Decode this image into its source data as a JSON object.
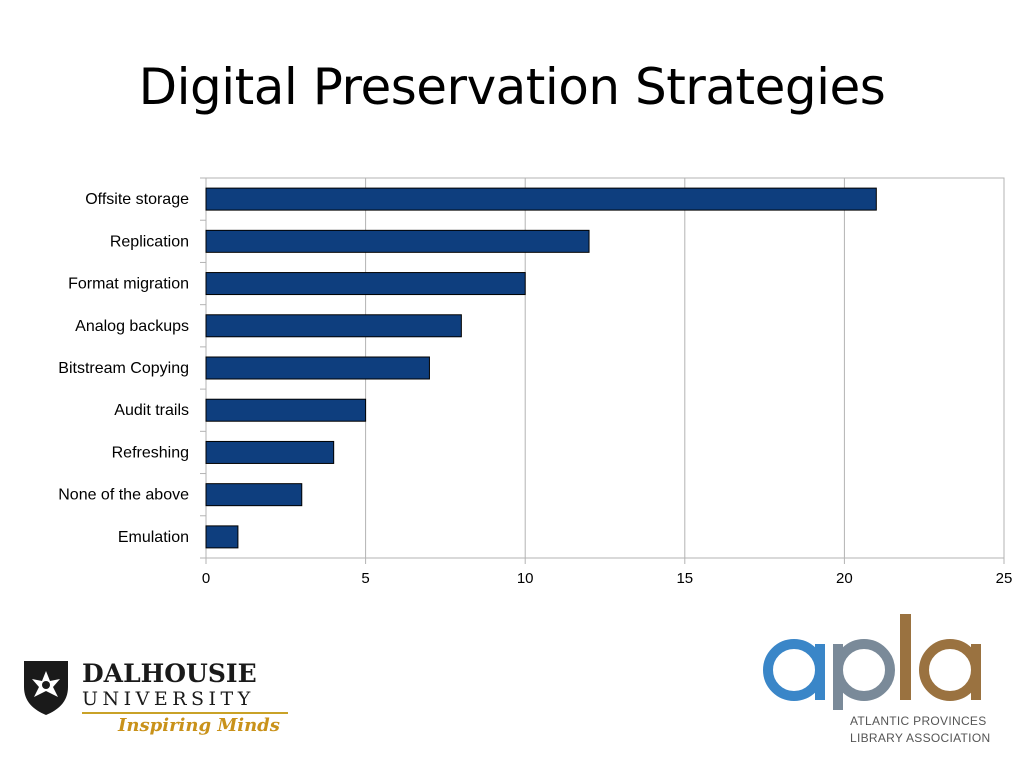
{
  "slide": {
    "title": "Digital Preservation Strategies"
  },
  "chart_data": {
    "type": "bar",
    "orientation": "horizontal",
    "categories": [
      "Offsite storage",
      "Replication",
      "Format migration",
      "Analog backups",
      "Bitstream Copying",
      "Audit trails",
      "Refreshing",
      "None of the above",
      "Emulation"
    ],
    "values": [
      21,
      12,
      10,
      8,
      7,
      5,
      4,
      3,
      1
    ],
    "xlim": [
      0,
      25
    ],
    "xticks": [
      0,
      5,
      10,
      15,
      20,
      25
    ],
    "grid": true,
    "bar_color": "#0e3e7e"
  },
  "logos": {
    "dalhousie": {
      "name": "DALHOUSIE",
      "sub": "UNIVERSITY",
      "tagline": "Inspiring Minds"
    },
    "apla": {
      "mark": "apla",
      "line1": "ATLANTIC PROVINCES",
      "line2": "LIBRARY ASSOCIATION",
      "blue": "#3a86c8",
      "brown": "#9a7240"
    }
  }
}
